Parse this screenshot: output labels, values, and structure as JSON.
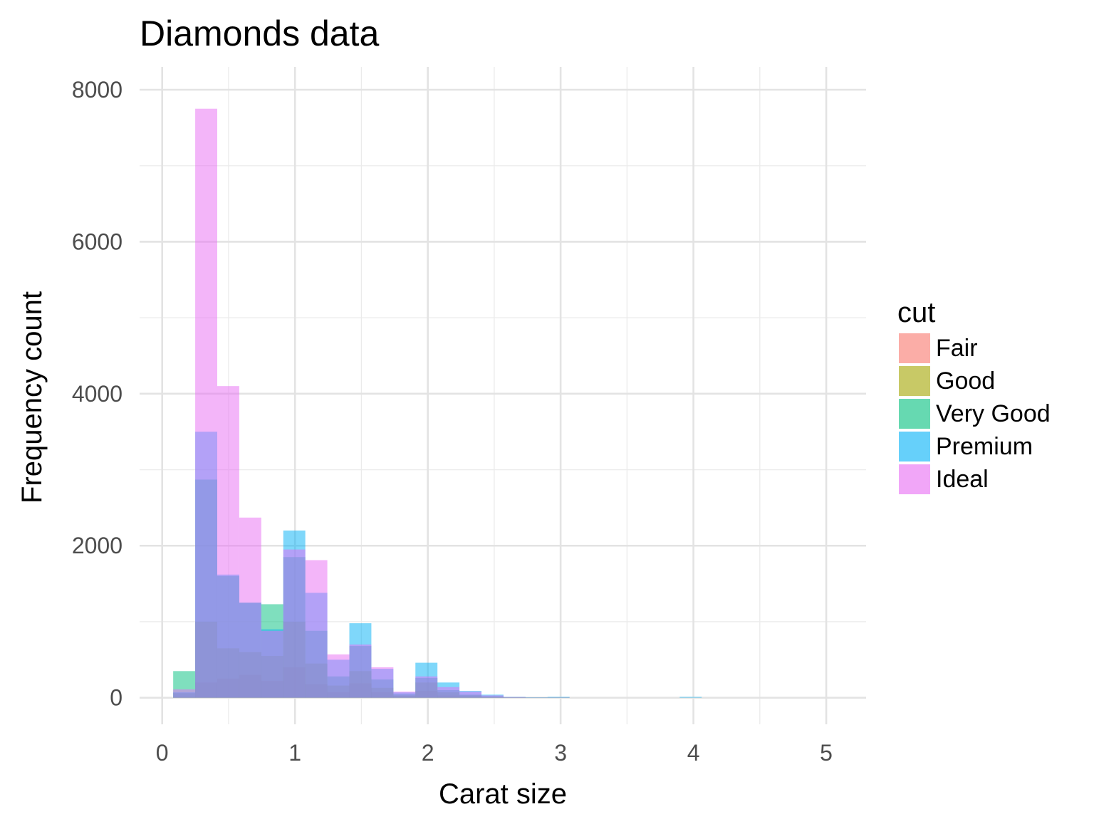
{
  "chart_data": {
    "type": "bar",
    "title": "Diamonds data",
    "xlabel": "Carat size",
    "ylabel": "Frequency count",
    "xlim": [
      -0.17,
      5.3
    ],
    "ylim": [
      -350,
      8300
    ],
    "xticks": [
      0,
      1,
      2,
      3,
      4,
      5
    ],
    "yticks": [
      0,
      2000,
      4000,
      6000,
      8000
    ],
    "grid": true,
    "bin_width": 0.1658,
    "bin_centers": [
      0.1658,
      0.3316,
      0.4974,
      0.6632,
      0.829,
      0.9948,
      1.1606,
      1.3264,
      1.4922,
      1.658,
      1.8238,
      1.9896,
      2.1554,
      2.3212,
      2.487,
      2.6528,
      2.8186,
      2.9844,
      3.1502,
      3.316,
      3.4818,
      3.6476,
      3.8134,
      3.9792,
      4.145,
      4.3108,
      4.4766,
      4.6424,
      4.8082,
      4.974
    ],
    "legend": {
      "title": "cut",
      "position": "right"
    },
    "series": [
      {
        "name": "Fair",
        "color": "#F8766D",
        "values": [
          10,
          200,
          250,
          300,
          220,
          400,
          180,
          70,
          190,
          70,
          20,
          90,
          30,
          10,
          5,
          2,
          1,
          1,
          0,
          0,
          0,
          0,
          0,
          0,
          0,
          0,
          0,
          0,
          0,
          0
        ]
      },
      {
        "name": "Good",
        "color": "#A3A500",
        "values": [
          60,
          1000,
          650,
          600,
          550,
          1000,
          450,
          160,
          350,
          130,
          30,
          200,
          70,
          30,
          10,
          3,
          1,
          1,
          0,
          0,
          0,
          0,
          0,
          0,
          0,
          0,
          0,
          0,
          0,
          0
        ]
      },
      {
        "name": "Very Good",
        "color": "#00BF7D",
        "values": [
          350,
          2870,
          1600,
          1250,
          1230,
          1850,
          880,
          280,
          680,
          240,
          50,
          260,
          100,
          40,
          20,
          5,
          2,
          2,
          0,
          0,
          0,
          0,
          0,
          0,
          0,
          0,
          0,
          0,
          0,
          0
        ]
      },
      {
        "name": "Premium",
        "color": "#00B0F6",
        "values": [
          70,
          3500,
          1620,
          1250,
          900,
          2200,
          1380,
          500,
          980,
          380,
          70,
          460,
          200,
          90,
          40,
          10,
          5,
          10,
          0,
          0,
          0,
          0,
          0,
          10,
          0,
          0,
          0,
          0,
          0,
          0
        ]
      },
      {
        "name": "Ideal",
        "color": "#E76BF3",
        "values": [
          110,
          7750,
          4100,
          2370,
          880,
          1950,
          1810,
          570,
          700,
          400,
          80,
          280,
          140,
          80,
          30,
          8,
          3,
          3,
          0,
          0,
          0,
          0,
          0,
          0,
          0,
          0,
          0,
          0,
          0,
          0
        ]
      }
    ]
  }
}
